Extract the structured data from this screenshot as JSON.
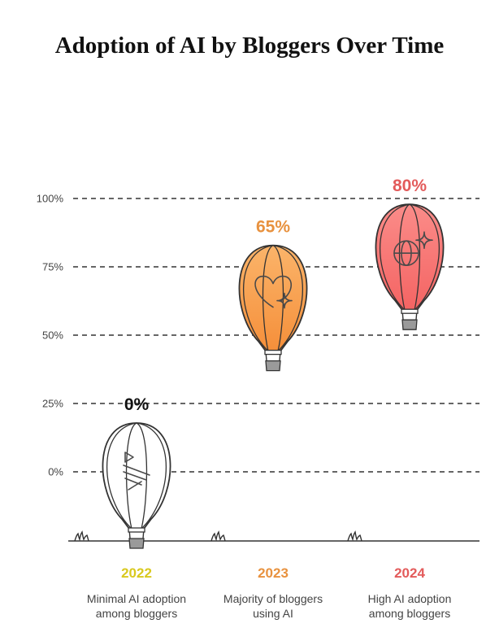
{
  "chart_data": {
    "type": "pictograph",
    "title": "Adoption of AI by Bloggers Over Time",
    "xlabel": "",
    "ylabel": "",
    "ylim": [
      0,
      100
    ],
    "yticks": [
      "0%",
      "25%",
      "50%",
      "75%",
      "100%"
    ],
    "ytick_values": [
      0,
      25,
      50,
      75,
      100
    ],
    "grid": true,
    "categories": [
      "2022",
      "2023",
      "2024"
    ],
    "values": [
      0,
      65,
      80
    ],
    "value_labels": [
      "0%",
      "65%",
      "80%"
    ],
    "descriptions": [
      [
        "Minimal AI adoption",
        "among bloggers"
      ],
      [
        "Majority of bloggers",
        "using AI"
      ],
      [
        "High AI adoption",
        "among bloggers"
      ]
    ],
    "colors": [
      "#d9c91e",
      "#e8923f",
      "#e35b5b"
    ],
    "balloon_fills": [
      "#ffffff",
      "#f9a557",
      "#f87a78"
    ],
    "icons": [
      "play-list-icon",
      "heart-sparkle-icon",
      "globe-sparkle-icon"
    ]
  }
}
